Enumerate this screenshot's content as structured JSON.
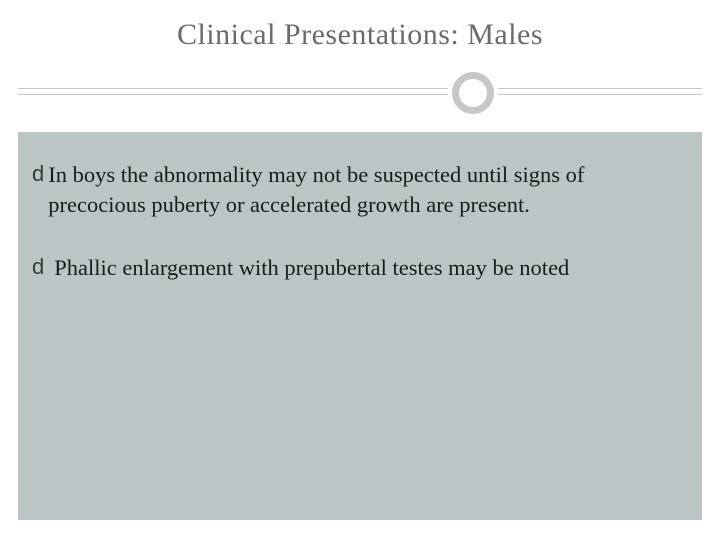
{
  "slide": {
    "title": "Clinical Presentations: Males",
    "bullets": [
      {
        "glyph": "d",
        "text": "In boys the abnormality may not be suspected until signs of precocious puberty or accelerated growth are present."
      },
      {
        "glyph": "d",
        "text": "Phallic enlargement with prepubertal testes may be noted"
      }
    ],
    "colors": {
      "title_color": "#6b6b6b",
      "content_bg": "#bac5c5",
      "ring_color": "#c7c7c7",
      "text_color": "#1a1a1a",
      "page_bg": "#ffffff"
    },
    "typography": {
      "title_fontsize": 30,
      "body_fontsize": 22.5,
      "font_family": "Georgia, serif"
    }
  }
}
